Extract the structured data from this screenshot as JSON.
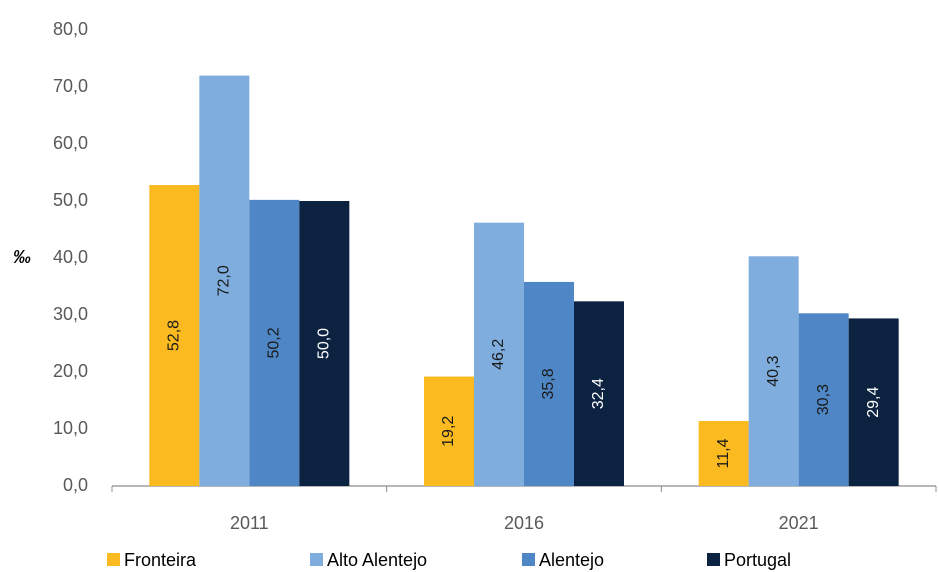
{
  "chart_data": {
    "type": "bar",
    "y_label": "‰",
    "categories": [
      "2011",
      "2016",
      "2021"
    ],
    "series": [
      {
        "name": "Fronteira",
        "color": "#fbba1f",
        "values": [
          52.8,
          19.2,
          11.4
        ],
        "value_labels": [
          "52,8",
          "19,2",
          "11,4"
        ]
      },
      {
        "name": "Alto Alentejo",
        "color": "#7fadde",
        "values": [
          72.0,
          46.2,
          40.3
        ],
        "value_labels": [
          "72,0",
          "46,2",
          "40,3"
        ]
      },
      {
        "name": "Alentejo",
        "color": "#4f87c6",
        "values": [
          50.2,
          35.8,
          30.3
        ],
        "value_labels": [
          "50,2",
          "35,8",
          "30,3"
        ]
      },
      {
        "name": "Portugal",
        "color": "#0b2240",
        "values": [
          50.0,
          32.4,
          29.4
        ],
        "value_labels": [
          "50,0",
          "32,4",
          "29,4"
        ]
      }
    ],
    "ylim": [
      0,
      80
    ],
    "yticks": [
      {
        "value": 0,
        "label": "0,0"
      },
      {
        "value": 10,
        "label": "10,0"
      },
      {
        "value": 20,
        "label": "20,0"
      },
      {
        "value": 30,
        "label": "30,0"
      },
      {
        "value": 40,
        "label": "40,0"
      },
      {
        "value": 50,
        "label": "50,0"
      },
      {
        "value": 60,
        "label": "60,0"
      },
      {
        "value": 70,
        "label": "70,0"
      },
      {
        "value": 80,
        "label": "80,0"
      }
    ],
    "grid": false,
    "legend": "bottom"
  }
}
